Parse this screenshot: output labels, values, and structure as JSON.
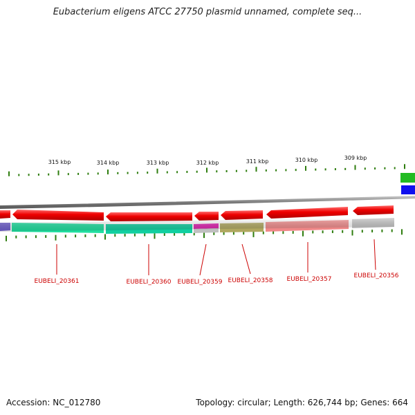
{
  "title": "Eubacterium eligens ATCC 27750 plasmid unnamed, complete seq...",
  "ruler": {
    "labels": [
      "315 kbp",
      "314 kbp",
      "313 kbp",
      "312 kbp",
      "311 kbp",
      "310 kbp",
      "309 kbp"
    ],
    "tick_color": "#2e7d0e"
  },
  "genes": [
    {
      "locus_tag": "EUBELI_20361",
      "strand": "-",
      "protein_color": "#20e0a0",
      "has_cds": true
    },
    {
      "locus_tag": "EUBELI_20360",
      "strand": "-",
      "protein_color": "#10d0a0",
      "has_cds": true
    },
    {
      "locus_tag": "EUBELI_20359",
      "strand": "-",
      "protein_color": "#e020b0",
      "has_cds": true
    },
    {
      "locus_tag": "EUBELI_20358",
      "strand": "-",
      "protein_color": "#b0a860",
      "has_cds": true
    },
    {
      "locus_tag": "EUBELI_20357",
      "strand": "-",
      "protein_color": "#f08888",
      "has_cds": true
    },
    {
      "locus_tag": "EUBELI_20356",
      "strand": "-",
      "protein_color": "#c0c0c0",
      "has_cds": true
    }
  ],
  "colors": {
    "cds": "#ee0000",
    "backbone": "#888888",
    "label": "#cc0000",
    "edge_green": "#22bb22",
    "edge_blue": "#1010ee",
    "edge_purple": "#7060d0"
  },
  "footer": {
    "accession": "Accession: NC_012780",
    "summary": "Topology: circular; Length: 626,744 bp; Genes: 664"
  }
}
